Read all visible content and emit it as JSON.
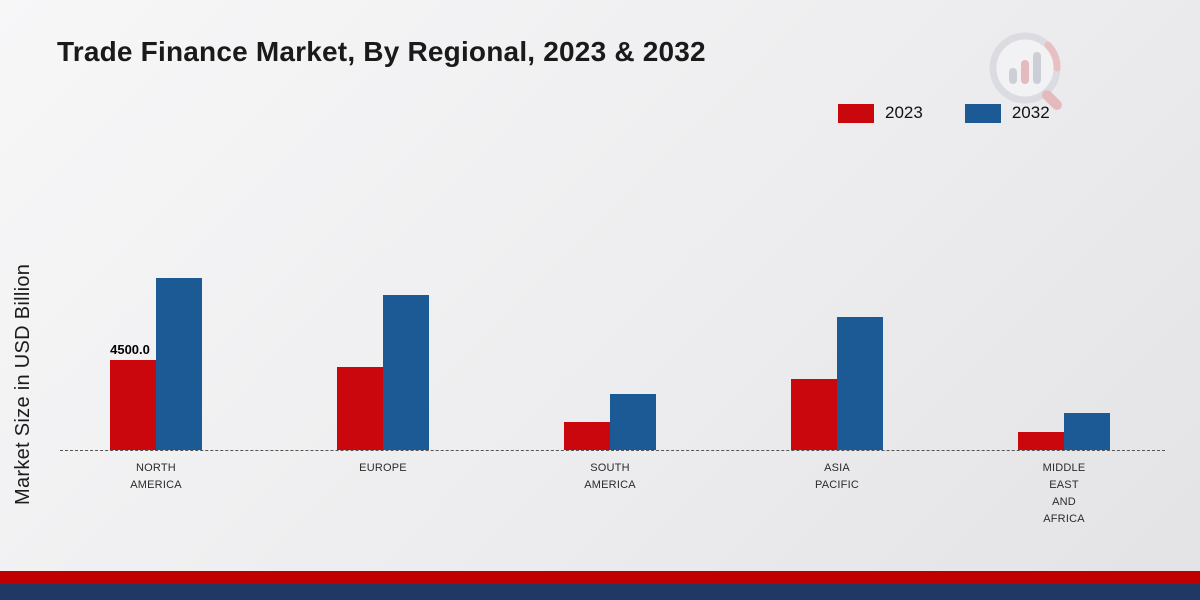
{
  "title": "Trade Finance Market, By Regional, 2023 & 2032",
  "ylabel": "Market Size in USD Billion",
  "legend": [
    {
      "label": "2023",
      "color": "#c9070d"
    },
    {
      "label": "2032",
      "color": "#1c5a96"
    }
  ],
  "logo_name": "market-research-magnifier-logo",
  "footer": {
    "red_stripe_color": "#c00000",
    "blue_stripe_color": "#1f3864"
  },
  "chart_data": {
    "type": "bar",
    "title": "Trade Finance Market, By Regional, 2023 & 2032",
    "xlabel": "",
    "ylabel": "Market Size in USD Billion",
    "categories": [
      "NORTH AMERICA",
      "EUROPE",
      "SOUTH AMERICA",
      "ASIA PACIFIC",
      "MIDDLE EAST AND AFRICA"
    ],
    "category_label_lines": [
      [
        "NORTH",
        "AMERICA"
      ],
      [
        "EUROPE"
      ],
      [
        "SOUTH",
        "AMERICA"
      ],
      [
        "ASIA",
        "PACIFIC"
      ],
      [
        "MIDDLE",
        "EAST",
        "AND",
        "AFRICA"
      ]
    ],
    "series": [
      {
        "name": "2023",
        "color": "#c9070d",
        "values": [
          4500.0,
          4150,
          1400,
          3550,
          900
        ]
      },
      {
        "name": "2032",
        "color": "#1c5a96",
        "values": [
          8600,
          7750,
          2800,
          6650,
          1850
        ]
      }
    ],
    "annotations": [
      {
        "series": "2023",
        "category": "NORTH AMERICA",
        "text": "4500.0"
      }
    ],
    "ylim": [
      0,
      9000
    ],
    "grid": false,
    "baseline_dashed": true,
    "legend_position": "top-right"
  }
}
